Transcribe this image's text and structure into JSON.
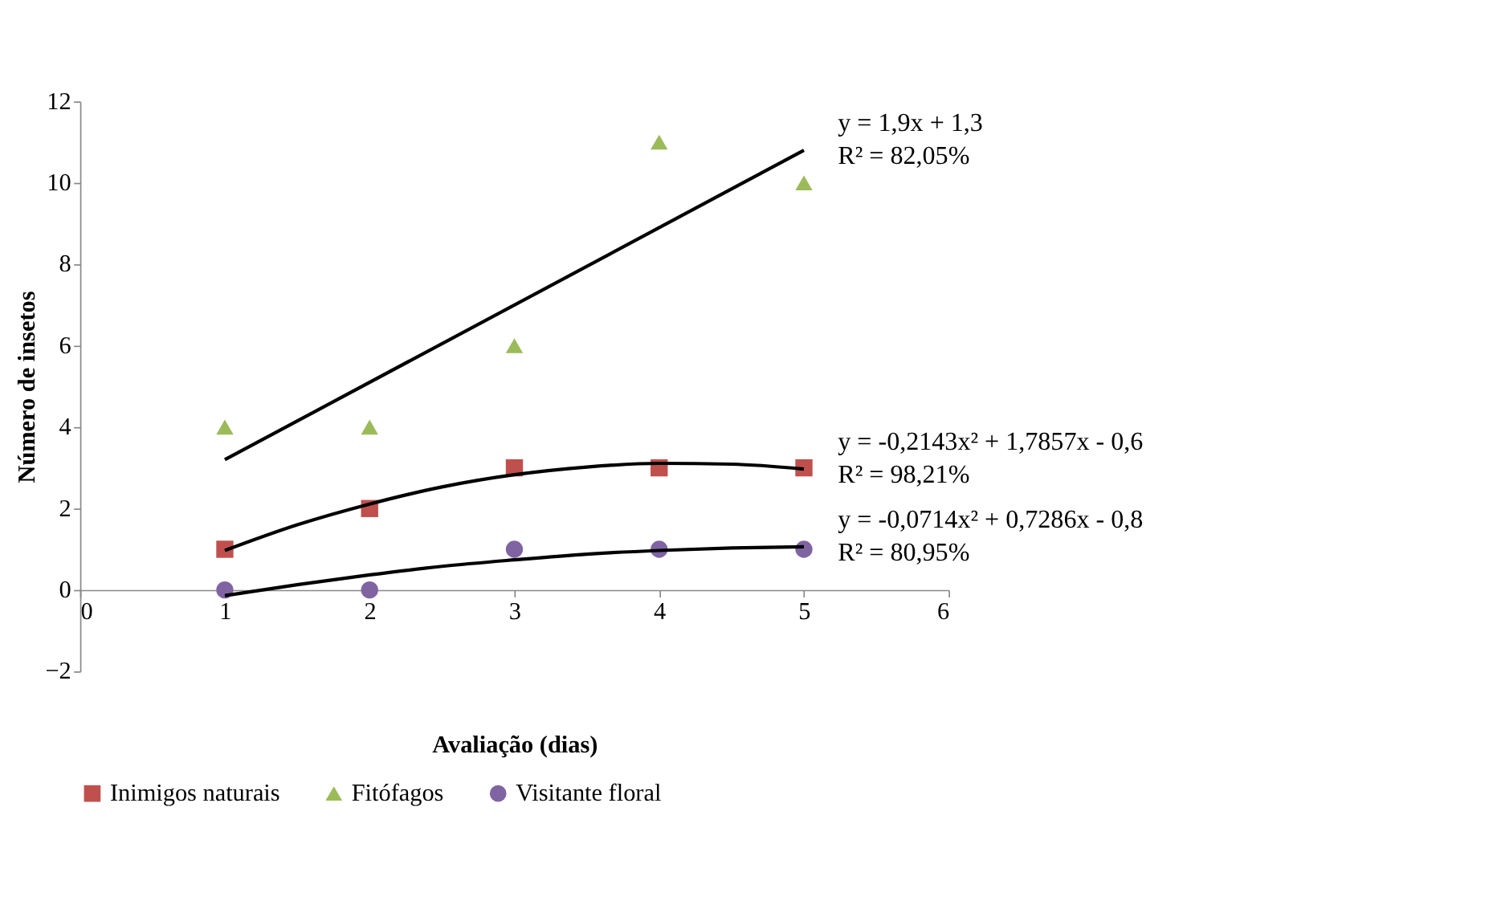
{
  "chart_data": {
    "type": "scatter",
    "xlabel": "Avaliação (dias)",
    "ylabel": "Número de insetos",
    "x": [
      1,
      2,
      3,
      4,
      5
    ],
    "series": [
      {
        "name": "Inimigos naturais",
        "color": "#c0504d",
        "marker": "square",
        "values": [
          1,
          2,
          3,
          3,
          3
        ]
      },
      {
        "name": "Fitófagos",
        "color": "#9bbb59",
        "marker": "triangle",
        "values": [
          4,
          4,
          6,
          11,
          10
        ]
      },
      {
        "name": "Visitante floral",
        "color": "#8064a2",
        "marker": "circle",
        "values": [
          0,
          0,
          1,
          1,
          1
        ]
      },
      {
        "type": "line",
        "color": "#000000",
        "marker": "none",
        "x": [
          1,
          5
        ],
        "values": [
          3.2,
          10.8
        ]
      },
      {
        "type": "line",
        "color": "#000000",
        "marker": "none",
        "x": [
          1,
          1.5,
          2,
          2.5,
          3,
          3.5,
          4,
          4.5,
          5
        ],
        "values": [
          0.97,
          1.6,
          2.11,
          2.53,
          2.83,
          3.02,
          3.11,
          3.09,
          2.97
        ]
      },
      {
        "type": "line",
        "color": "#000000",
        "marker": "none",
        "x": [
          1,
          1.5,
          2,
          2.5,
          3,
          3.5,
          4,
          4.5,
          5
        ],
        "values": [
          -0.14,
          0.13,
          0.37,
          0.58,
          0.74,
          0.88,
          0.97,
          1.03,
          1.06
        ]
      }
    ],
    "annotations": [
      "y = 1,9x + 1,3\nR² = 82,05%",
      "y = -0,2143x² + 1,7857x - 0,6\nR² = 98,21%",
      "y = -0,0714x² + 0,7286x - 0,8\nR² = 80,95%"
    ],
    "xlim": [
      0,
      6
    ],
    "xticks": [
      0,
      1,
      2,
      3,
      4,
      5,
      6
    ],
    "ylim": [
      -2,
      12
    ],
    "yticks": [
      -2,
      0,
      2,
      4,
      6,
      8,
      10,
      12
    ],
    "grid": false,
    "legend": "bottom"
  }
}
